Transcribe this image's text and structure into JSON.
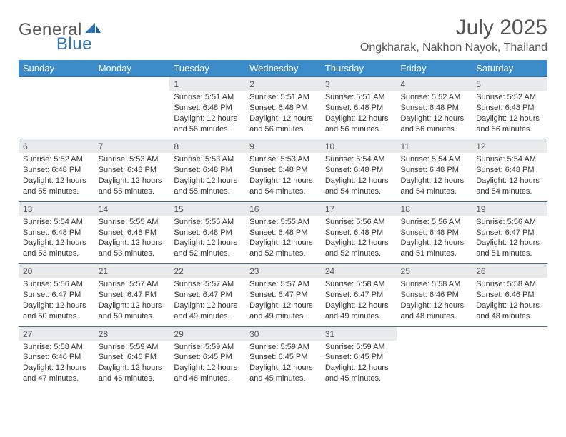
{
  "logo": {
    "general": "General",
    "blue": "Blue",
    "accent_color": "#2e75b6"
  },
  "title": "July 2025",
  "location": "Ongkharak, Nakhon Nayok, Thailand",
  "colors": {
    "header_bg": "#3b8bc9",
    "header_text": "#ffffff",
    "daynum_bg": "#e9eaec",
    "border_top": "#4a6a8a",
    "body_text": "#333333",
    "muted_text": "#555555"
  },
  "typography": {
    "title_fontsize": 30,
    "location_fontsize": 16,
    "weekday_fontsize": 13,
    "daynum_fontsize": 12,
    "detail_fontsize": 11
  },
  "weekdays": [
    "Sunday",
    "Monday",
    "Tuesday",
    "Wednesday",
    "Thursday",
    "Friday",
    "Saturday"
  ],
  "weeks": [
    [
      null,
      null,
      {
        "n": "1",
        "sr": "5:51 AM",
        "ss": "6:48 PM",
        "dl": "12 hours and 56 minutes."
      },
      {
        "n": "2",
        "sr": "5:51 AM",
        "ss": "6:48 PM",
        "dl": "12 hours and 56 minutes."
      },
      {
        "n": "3",
        "sr": "5:51 AM",
        "ss": "6:48 PM",
        "dl": "12 hours and 56 minutes."
      },
      {
        "n": "4",
        "sr": "5:52 AM",
        "ss": "6:48 PM",
        "dl": "12 hours and 56 minutes."
      },
      {
        "n": "5",
        "sr": "5:52 AM",
        "ss": "6:48 PM",
        "dl": "12 hours and 56 minutes."
      }
    ],
    [
      {
        "n": "6",
        "sr": "5:52 AM",
        "ss": "6:48 PM",
        "dl": "12 hours and 55 minutes."
      },
      {
        "n": "7",
        "sr": "5:53 AM",
        "ss": "6:48 PM",
        "dl": "12 hours and 55 minutes."
      },
      {
        "n": "8",
        "sr": "5:53 AM",
        "ss": "6:48 PM",
        "dl": "12 hours and 55 minutes."
      },
      {
        "n": "9",
        "sr": "5:53 AM",
        "ss": "6:48 PM",
        "dl": "12 hours and 54 minutes."
      },
      {
        "n": "10",
        "sr": "5:54 AM",
        "ss": "6:48 PM",
        "dl": "12 hours and 54 minutes."
      },
      {
        "n": "11",
        "sr": "5:54 AM",
        "ss": "6:48 PM",
        "dl": "12 hours and 54 minutes."
      },
      {
        "n": "12",
        "sr": "5:54 AM",
        "ss": "6:48 PM",
        "dl": "12 hours and 54 minutes."
      }
    ],
    [
      {
        "n": "13",
        "sr": "5:54 AM",
        "ss": "6:48 PM",
        "dl": "12 hours and 53 minutes."
      },
      {
        "n": "14",
        "sr": "5:55 AM",
        "ss": "6:48 PM",
        "dl": "12 hours and 53 minutes."
      },
      {
        "n": "15",
        "sr": "5:55 AM",
        "ss": "6:48 PM",
        "dl": "12 hours and 52 minutes."
      },
      {
        "n": "16",
        "sr": "5:55 AM",
        "ss": "6:48 PM",
        "dl": "12 hours and 52 minutes."
      },
      {
        "n": "17",
        "sr": "5:56 AM",
        "ss": "6:48 PM",
        "dl": "12 hours and 52 minutes."
      },
      {
        "n": "18",
        "sr": "5:56 AM",
        "ss": "6:48 PM",
        "dl": "12 hours and 51 minutes."
      },
      {
        "n": "19",
        "sr": "5:56 AM",
        "ss": "6:47 PM",
        "dl": "12 hours and 51 minutes."
      }
    ],
    [
      {
        "n": "20",
        "sr": "5:56 AM",
        "ss": "6:47 PM",
        "dl": "12 hours and 50 minutes."
      },
      {
        "n": "21",
        "sr": "5:57 AM",
        "ss": "6:47 PM",
        "dl": "12 hours and 50 minutes."
      },
      {
        "n": "22",
        "sr": "5:57 AM",
        "ss": "6:47 PM",
        "dl": "12 hours and 49 minutes."
      },
      {
        "n": "23",
        "sr": "5:57 AM",
        "ss": "6:47 PM",
        "dl": "12 hours and 49 minutes."
      },
      {
        "n": "24",
        "sr": "5:58 AM",
        "ss": "6:47 PM",
        "dl": "12 hours and 49 minutes."
      },
      {
        "n": "25",
        "sr": "5:58 AM",
        "ss": "6:46 PM",
        "dl": "12 hours and 48 minutes."
      },
      {
        "n": "26",
        "sr": "5:58 AM",
        "ss": "6:46 PM",
        "dl": "12 hours and 48 minutes."
      }
    ],
    [
      {
        "n": "27",
        "sr": "5:58 AM",
        "ss": "6:46 PM",
        "dl": "12 hours and 47 minutes."
      },
      {
        "n": "28",
        "sr": "5:59 AM",
        "ss": "6:46 PM",
        "dl": "12 hours and 46 minutes."
      },
      {
        "n": "29",
        "sr": "5:59 AM",
        "ss": "6:45 PM",
        "dl": "12 hours and 46 minutes."
      },
      {
        "n": "30",
        "sr": "5:59 AM",
        "ss": "6:45 PM",
        "dl": "12 hours and 45 minutes."
      },
      {
        "n": "31",
        "sr": "5:59 AM",
        "ss": "6:45 PM",
        "dl": "12 hours and 45 minutes."
      },
      null,
      null
    ]
  ],
  "labels": {
    "sunrise": "Sunrise: ",
    "sunset": "Sunset: ",
    "daylight": "Daylight: "
  }
}
